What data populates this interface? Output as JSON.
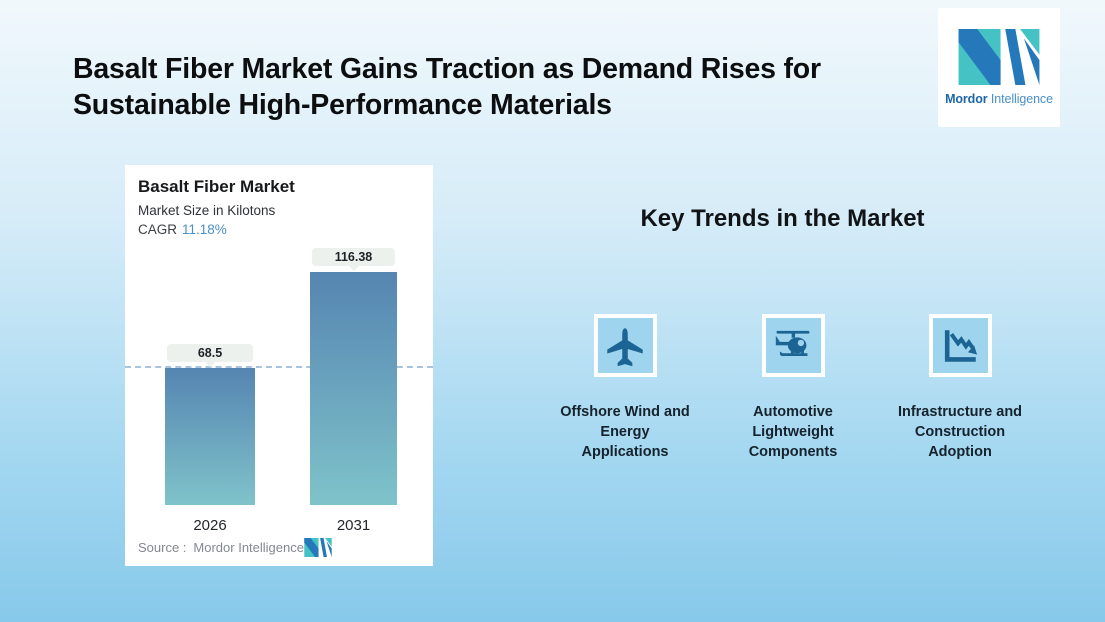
{
  "page": {
    "title_lines": [
      "Basalt Fiber Market Gains Traction as Demand Rises for",
      "Sustainable High-Performance Materials"
    ],
    "background_top": "#f1f8fc",
    "background_bottom": "#87c9ea"
  },
  "brand": {
    "name_bold": "Mordor",
    "name_light": "Intelligence",
    "logo_blue": "#2579bb",
    "logo_teal": "#45c2c4"
  },
  "chart_card": {
    "title": "Basalt Fiber Market",
    "subtitle": "Market Size in Kilotons",
    "cagr_label": "CAGR",
    "cagr_value": "11.18%",
    "source_label": "Source :",
    "source_value": "Mordor Intelligence"
  },
  "chart_data": {
    "type": "bar",
    "title": "Basalt Fiber Market",
    "ylabel": "Market Size in Kilotons",
    "categories": [
      "2026",
      "2031"
    ],
    "values": [
      68.5,
      116.38
    ],
    "value_labels": [
      "68.5",
      "116.38"
    ],
    "cagr_percent": 11.18,
    "ylim": [
      0,
      125
    ],
    "grid": false,
    "legend": false,
    "reference_line_value": 68.5,
    "reference_line_style": "dashed",
    "reference_line_color": "#a9c3dc",
    "bar_color_top": "#5585b1",
    "bar_color_bottom": "#7fc3ca"
  },
  "trends": {
    "heading": "Key Trends in the Market",
    "items": [
      {
        "icon": "airplane-icon",
        "lines": [
          "Offshore Wind and",
          "Energy",
          "Applications"
        ]
      },
      {
        "icon": "helicopter-icon",
        "lines": [
          "Automotive",
          "Lightweight",
          "Components"
        ]
      },
      {
        "icon": "declining-line-chart-icon",
        "lines": [
          "Infrastructure and",
          "Construction",
          "Adoption"
        ]
      }
    ]
  }
}
